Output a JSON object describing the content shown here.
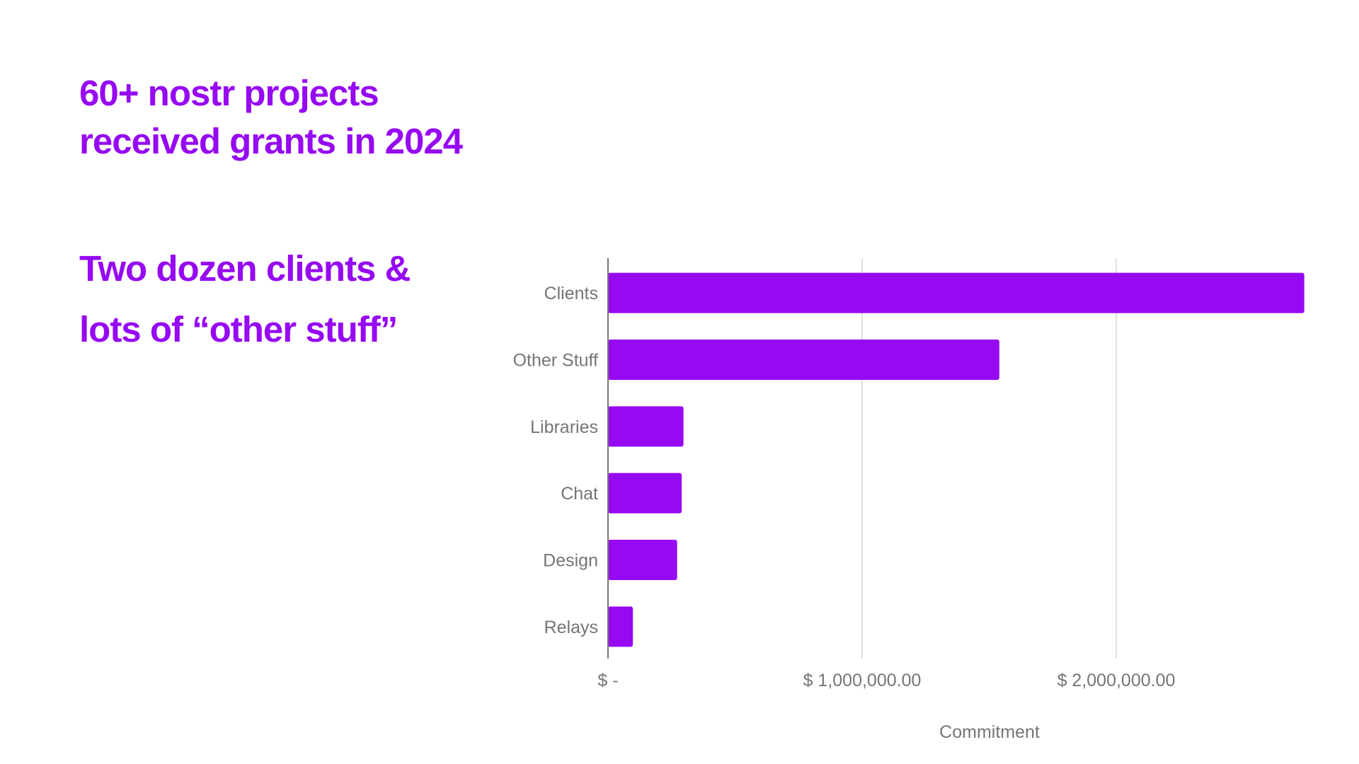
{
  "slide": {
    "headline_lines": [
      "60+ nostr projects",
      "received grants in 2024"
    ],
    "subheadline_lines": [
      "Two dozen clients &",
      "lots of “other stuff”"
    ],
    "accent_color": "#9609f2"
  },
  "chart_data": {
    "type": "bar",
    "orientation": "horizontal",
    "categories": [
      "Clients",
      "Other Stuff",
      "Libraries",
      "Chat",
      "Design",
      "Relays"
    ],
    "values": [
      2740000,
      1540000,
      297000,
      290000,
      272000,
      98000
    ],
    "xlabel": "Commitment",
    "ylabel": "",
    "xlim": [
      0,
      2750000
    ],
    "x_ticks": [
      0,
      1000000,
      2000000
    ],
    "x_tick_labels": [
      "$ -",
      "$ 1,000,000.00",
      "$ 2,000,000.00"
    ],
    "grid": true,
    "bar_color": "#9609f2"
  }
}
